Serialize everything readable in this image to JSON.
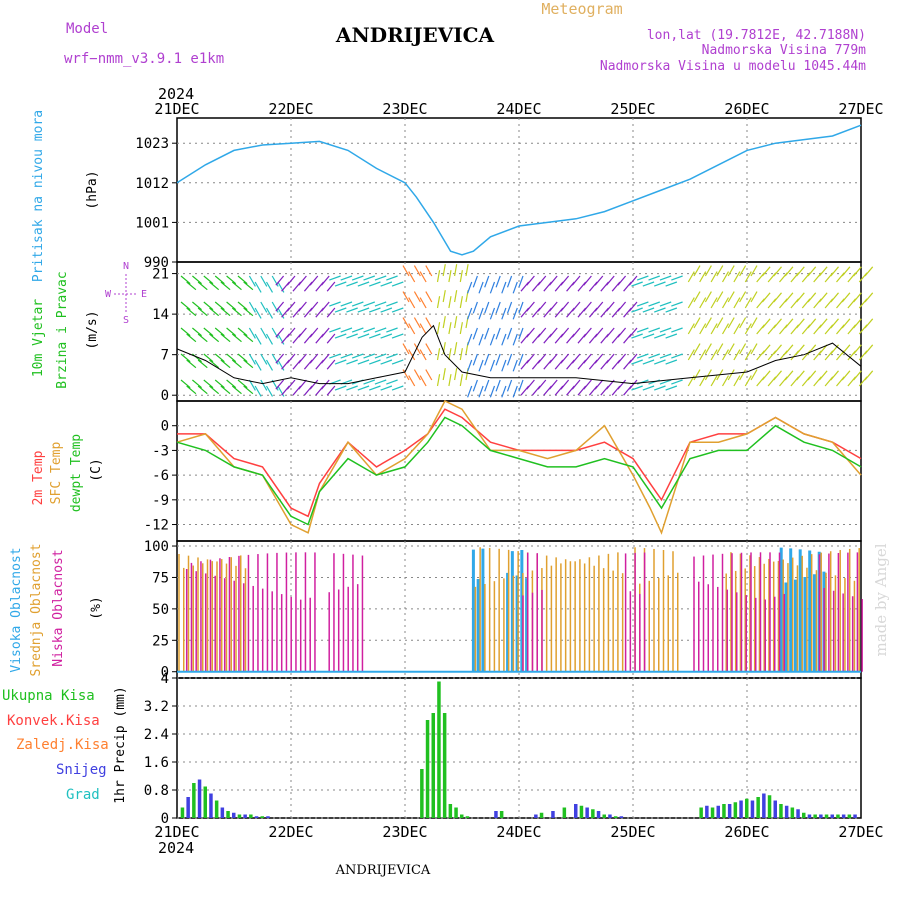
{
  "header": {
    "model_label": "Model",
    "model_value": "wrf−nmm_v3.9.1  e1km",
    "title": "ANDRIJEVICA",
    "meteogram_label": "Meteogram",
    "lonlat": "lon,lat (19.7812E, 42.7188N)",
    "elevation": "Nadmorska Visina 779m",
    "model_elevation": "Nadmorska Visina u modelu 1045.44m",
    "footer_title": "ANDRIJEVICA",
    "watermark": "made by Angel",
    "year": "2024",
    "colors": {
      "model": "#b040d0",
      "meteogram": "#e0b060",
      "pressure": "#30a8e8",
      "wind_green": "#20c020",
      "temp_red": "#ff4040",
      "temp_orange": "#e0a030",
      "dewpt_green": "#20c020",
      "cloud_high": "#30a8e8",
      "cloud_mid": "#e0a030",
      "cloud_low": "#d020a0",
      "precip_total": "#20c020",
      "precip_conv": "#ff4040",
      "precip_frz": "#ff8030",
      "precip_snow": "#4040e0",
      "precip_grad": "#20c0c0"
    }
  },
  "axes": {
    "x_ticks": [
      "21DEC",
      "22DEC",
      "23DEC",
      "24DEC",
      "25DEC",
      "26DEC",
      "27DEC"
    ]
  },
  "panels": {
    "pressure": {
      "ylabel_main": "Pritisak na nivou mora",
      "ylabel_unit": "(hPa)",
      "ticks": [
        "1023",
        "1012",
        "1001",
        "990"
      ]
    },
    "wind": {
      "ylabel_main": "10m Vjetar",
      "ylabel_sub": "Brzina i Pravac",
      "ylabel_unit": "(m/s)",
      "ticks": [
        "21",
        "14",
        "7",
        "0"
      ],
      "compass_n": "N",
      "compass_e": "E",
      "compass_w": "W",
      "compass_s": "S"
    },
    "temperature": {
      "ylabel_1": "2m Temp",
      "ylabel_2": "SFC Temp",
      "ylabel_3": "dewpt Temp",
      "ylabel_unit": "(C)",
      "ticks": [
        "0",
        "-3",
        "-6",
        "-9",
        "-12"
      ]
    },
    "clouds": {
      "ylabel_1": "Visoka Oblacnost",
      "ylabel_2": "Srednja Oblacnost",
      "ylabel_3": "Niska  Oblacnost",
      "ylabel_unit": "(%)",
      "ticks": [
        "100",
        "75",
        "50",
        "25",
        "0"
      ]
    },
    "precip": {
      "legend_1": "Ukupna Kisa",
      "legend_2": "Konvek.Kisa",
      "legend_3": "Zaledj.Kisa",
      "legend_4": "Snijeg",
      "legend_5": "Grad",
      "ylabel": "1hr Precip (mm)",
      "ticks": [
        "4",
        "3.2",
        "2.4",
        "1.6",
        "0.8",
        "0"
      ]
    }
  },
  "chart_data": [
    {
      "type": "line",
      "name": "mslp",
      "ylim": [
        990,
        1030
      ],
      "x_days": [
        0,
        0.25,
        0.5,
        0.75,
        1,
        1.25,
        1.5,
        1.75,
        2,
        2.1,
        2.25,
        2.4,
        2.5,
        2.6,
        2.75,
        3,
        3.25,
        3.5,
        3.75,
        4,
        4.25,
        4.5,
        4.75,
        5,
        5.25,
        5.5,
        5.75,
        6
      ],
      "series": [
        {
          "values": [
            1012,
            1017,
            1021,
            1022.5,
            1023,
            1023.5,
            1021,
            1016,
            1012,
            1008,
            1001,
            993,
            992,
            993,
            997,
            1000,
            1001,
            1002,
            1004,
            1007,
            1010,
            1013,
            1017,
            1021,
            1023,
            1024,
            1025,
            1028
          ]
        }
      ]
    },
    {
      "type": "line",
      "name": "wind_speed",
      "ylim": [
        -1,
        23
      ],
      "x_days": [
        0,
        0.25,
        0.5,
        0.75,
        1,
        1.25,
        1.5,
        1.75,
        2,
        2.15,
        2.25,
        2.35,
        2.5,
        2.75,
        3,
        3.5,
        4,
        4.5,
        5,
        5.25,
        5.5,
        5.75,
        6
      ],
      "series": [
        {
          "values": [
            8,
            6,
            3,
            2,
            3,
            2,
            2,
            3,
            4,
            10,
            12,
            7,
            4,
            3,
            3,
            3,
            2,
            3,
            4,
            6,
            7,
            9,
            5
          ]
        }
      ]
    },
    {
      "type": "line",
      "name": "temperature",
      "ylim": [
        -14,
        3
      ],
      "x_days": [
        0,
        0.25,
        0.5,
        0.75,
        1,
        1.15,
        1.25,
        1.5,
        1.75,
        2,
        2.2,
        2.35,
        2.5,
        2.75,
        3,
        3.25,
        3.5,
        3.75,
        4,
        4.15,
        4.25,
        4.5,
        4.75,
        5,
        5.25,
        5.5,
        5.75,
        6
      ],
      "series": [
        {
          "name": "2m Temp",
          "values": [
            -1,
            -1,
            -4,
            -5,
            -10,
            -11,
            -7,
            -2,
            -5,
            -3,
            -1,
            2,
            1,
            -2,
            -3,
            -3,
            -3,
            -2,
            -4,
            -7,
            -9,
            -2,
            -1,
            -1,
            1,
            -1,
            -2,
            -4
          ]
        },
        {
          "name": "SFC Temp",
          "values": [
            -2,
            -1,
            -5,
            -6,
            -12,
            -13,
            -8,
            -2,
            -6,
            -4,
            -1,
            3,
            2,
            -3,
            -3,
            -4,
            -3,
            0,
            -6,
            -10,
            -13,
            -2,
            -2,
            -1,
            1,
            -1,
            -2,
            -6
          ]
        },
        {
          "name": "dewpt Temp",
          "values": [
            -2,
            -3,
            -5,
            -6,
            -11,
            -12,
            -8,
            -4,
            -6,
            -5,
            -2,
            1,
            0,
            -3,
            -4,
            -5,
            -5,
            -4,
            -5,
            -8,
            -10,
            -4,
            -3,
            -3,
            0,
            -2,
            -3,
            -5
          ]
        }
      ]
    },
    {
      "type": "bar",
      "name": "cloud_cover",
      "ylim": [
        0,
        100
      ],
      "series": [
        {
          "name": "Visoka Oblacnost",
          "segments_days": [
            [
              2.6,
              2.7
            ],
            [
              2.9,
              3.1
            ],
            [
              5.3,
              5.7
            ]
          ],
          "value": 100
        },
        {
          "name": "Srednja Oblacnost",
          "segments_days": [
            [
              0.0,
              0.6
            ],
            [
              2.6,
              3.9
            ],
            [
              4.0,
              4.4
            ],
            [
              4.8,
              6.0
            ]
          ],
          "value": 100
        },
        {
          "name": "Niska  Oblacnost",
          "segments_days": [
            [
              0.05,
              1.2
            ],
            [
              1.3,
              1.6
            ],
            [
              3.0,
              3.2
            ],
            [
              3.9,
              4.1
            ],
            [
              4.5,
              5.3
            ],
            [
              5.6,
              6.0
            ]
          ],
          "value": 95
        }
      ]
    },
    {
      "type": "bar",
      "name": "precip",
      "ylim": [
        0,
        4
      ],
      "x_days": [
        0.05,
        0.1,
        0.15,
        0.2,
        0.25,
        0.3,
        0.35,
        0.4,
        0.45,
        0.5,
        0.55,
        0.6,
        0.65,
        0.7,
        0.75,
        0.8,
        2.15,
        2.2,
        2.25,
        2.3,
        2.35,
        2.4,
        2.45,
        2.5,
        2.55,
        2.8,
        2.85,
        3.15,
        3.2,
        3.3,
        3.4,
        3.5,
        3.55,
        3.6,
        3.65,
        3.7,
        3.75,
        3.8,
        3.85,
        3.9,
        4.6,
        4.65,
        4.7,
        4.75,
        4.8,
        4.85,
        4.9,
        4.95,
        5.0,
        5.05,
        5.1,
        5.15,
        5.2,
        5.25,
        5.3,
        5.35,
        5.4,
        5.45,
        5.5,
        5.55,
        5.6,
        5.65,
        5.7,
        5.75,
        5.8,
        5.85,
        5.9,
        5.95
      ],
      "series": [
        {
          "name": "Ukupna Kisa",
          "values": [
            0.3,
            0.6,
            1.0,
            1.1,
            0.9,
            0.7,
            0.5,
            0.3,
            0.2,
            0.15,
            0.1,
            0.1,
            0.1,
            0.05,
            0.05,
            0.05,
            1.4,
            2.8,
            3.0,
            3.9,
            3.0,
            0.4,
            0.3,
            0.1,
            0.05,
            0.2,
            0.2,
            0.1,
            0.15,
            0.2,
            0.3,
            0.4,
            0.35,
            0.3,
            0.25,
            0.2,
            0.1,
            0.1,
            0.05,
            0.05,
            0.3,
            0.35,
            0.3,
            0.35,
            0.4,
            0.4,
            0.45,
            0.5,
            0.55,
            0.5,
            0.6,
            0.7,
            0.65,
            0.5,
            0.4,
            0.35,
            0.3,
            0.25,
            0.15,
            0.1,
            0.1,
            0.1,
            0.1,
            0.1,
            0.1,
            0.1,
            0.1,
            0.1
          ]
        }
      ]
    }
  ]
}
